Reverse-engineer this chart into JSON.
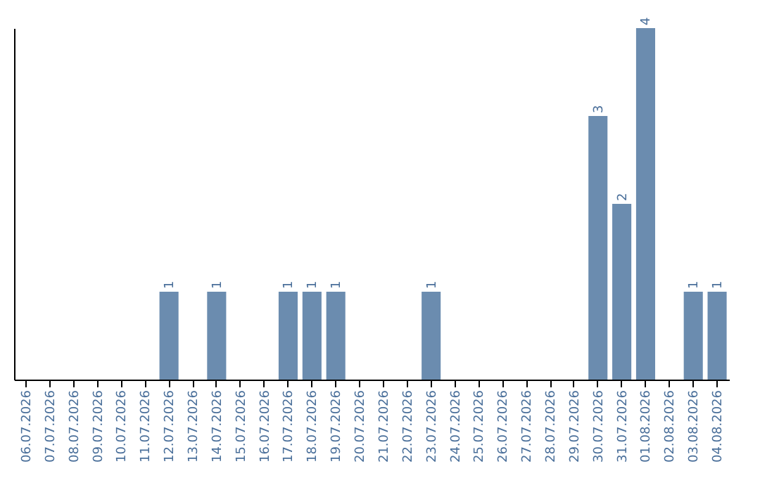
{
  "chart_data": {
    "type": "bar",
    "categories": [
      "06.07.2026",
      "07.07.2026",
      "08.07.2026",
      "09.07.2026",
      "10.07.2026",
      "11.07.2026",
      "12.07.2026",
      "13.07.2026",
      "14.07.2026",
      "15.07.2026",
      "16.07.2026",
      "17.07.2026",
      "18.07.2026",
      "19.07.2026",
      "20.07.2026",
      "21.07.2026",
      "22.07.2026",
      "23.07.2026",
      "24.07.2026",
      "25.07.2026",
      "26.07.2026",
      "27.07.2026",
      "28.07.2026",
      "29.07.2026",
      "30.07.2026",
      "31.07.2026",
      "01.08.2026",
      "02.08.2026",
      "03.08.2026",
      "04.08.2026"
    ],
    "values": [
      0,
      0,
      0,
      0,
      0,
      0,
      1,
      0,
      1,
      0,
      0,
      1,
      1,
      1,
      0,
      0,
      0,
      1,
      0,
      0,
      0,
      0,
      0,
      0,
      3,
      2,
      4,
      0,
      1,
      1
    ],
    "value_labels": [
      null,
      null,
      null,
      null,
      null,
      null,
      "1",
      null,
      "1",
      null,
      null,
      "1",
      "1",
      "1",
      null,
      null,
      null,
      "1",
      null,
      null,
      null,
      null,
      null,
      null,
      "3",
      "2",
      "4",
      null,
      "1",
      "1"
    ],
    "color": "#6b8caf",
    "grid": false,
    "tick_labels": "x"
  }
}
